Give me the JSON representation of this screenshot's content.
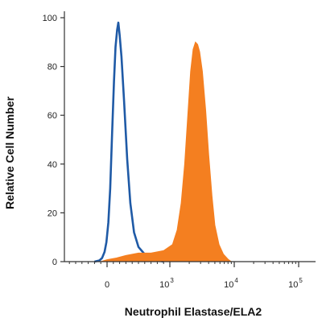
{
  "chart_data": {
    "type": "area",
    "xlabel": "Neutrophil Elastase/ELA2",
    "ylabel": "Relative Cell Number",
    "x_scale": "biexponential",
    "ylim": [
      0,
      100
    ],
    "y_ticks": [
      0,
      20,
      40,
      60,
      80,
      100
    ],
    "x_ticks": [
      {
        "base": "0",
        "exp": ""
      },
      {
        "base": "10",
        "exp": "3"
      },
      {
        "base": "10",
        "exp": "4"
      },
      {
        "base": "10",
        "exp": "5"
      }
    ],
    "grid": false,
    "colors": {
      "isotype": "#1f5aa6",
      "stained": "#f47f20",
      "axis": "#333333"
    },
    "series": [
      {
        "style": "outline",
        "color": "#1f5aa6",
        "points": [
          [
            -200,
            0
          ],
          [
            -120,
            0.5
          ],
          [
            -80,
            1.5
          ],
          [
            -40,
            4
          ],
          [
            -10,
            8
          ],
          [
            20,
            16
          ],
          [
            50,
            30
          ],
          [
            80,
            52
          ],
          [
            110,
            74
          ],
          [
            135,
            88
          ],
          [
            160,
            95
          ],
          [
            180,
            98
          ],
          [
            200,
            93
          ],
          [
            230,
            84
          ],
          [
            270,
            66
          ],
          [
            320,
            42
          ],
          [
            370,
            24
          ],
          [
            430,
            12
          ],
          [
            500,
            6
          ],
          [
            600,
            3
          ],
          [
            700,
            1.5
          ],
          [
            800,
            0.5
          ],
          [
            900,
            0
          ]
        ]
      },
      {
        "style": "filled",
        "color": "#f47f20",
        "points": [
          [
            -100,
            0
          ],
          [
            0,
            0.8
          ],
          [
            150,
            1.5
          ],
          [
            300,
            2.5
          ],
          [
            500,
            3.5
          ],
          [
            700,
            3.5
          ],
          [
            900,
            4.5
          ],
          [
            1100,
            7
          ],
          [
            1300,
            13
          ],
          [
            1500,
            24
          ],
          [
            1700,
            40
          ],
          [
            1900,
            60
          ],
          [
            2100,
            78
          ],
          [
            2300,
            87
          ],
          [
            2500,
            90
          ],
          [
            2700,
            89
          ],
          [
            2900,
            86
          ],
          [
            3200,
            78
          ],
          [
            3600,
            62
          ],
          [
            4000,
            44
          ],
          [
            4500,
            27
          ],
          [
            5000,
            15
          ],
          [
            5800,
            7
          ],
          [
            6800,
            3
          ],
          [
            8000,
            1
          ],
          [
            9000,
            0
          ]
        ]
      }
    ]
  }
}
